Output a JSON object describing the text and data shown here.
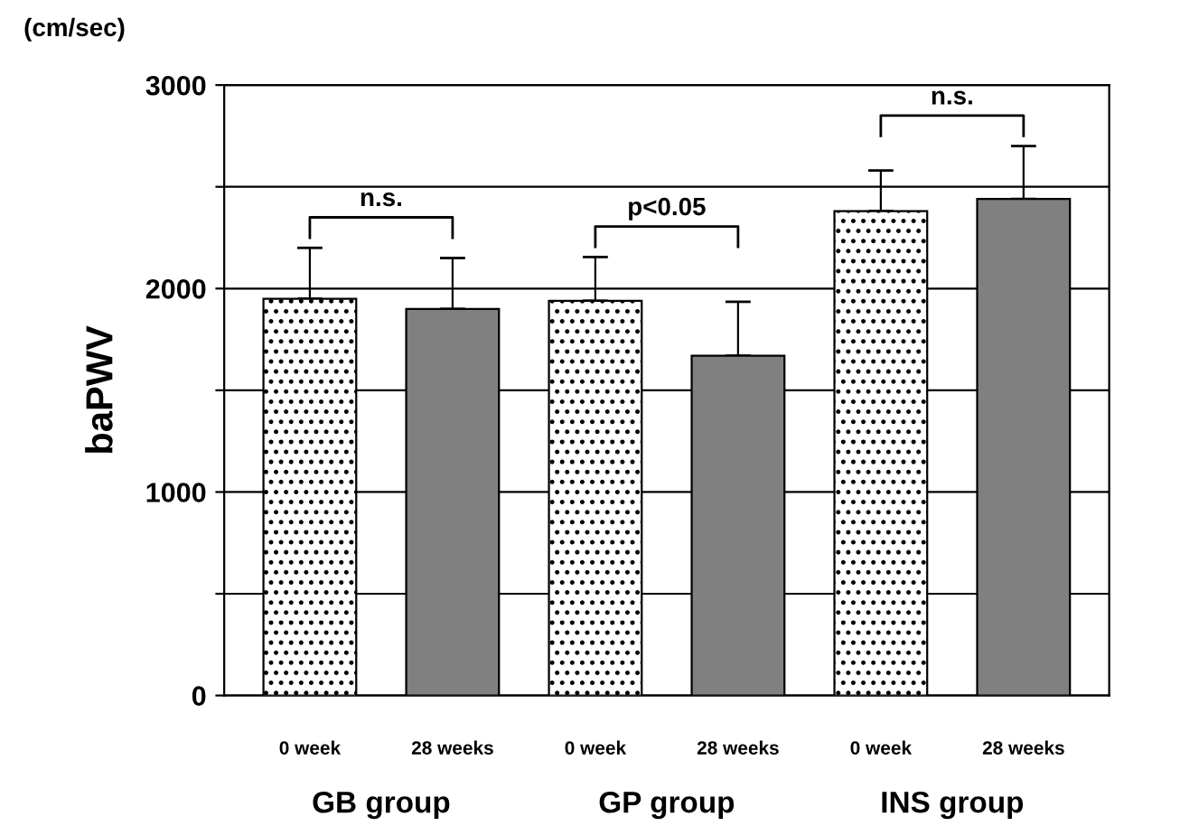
{
  "chart_data": {
    "type": "bar",
    "ylabel": "baPWV",
    "categories": [
      "0 week",
      "28 weeks",
      "0 week",
      "28 weeks",
      "0 week",
      "28 weeks"
    ],
    "values": [
      1950,
      1900,
      1940,
      1670,
      2380,
      2440
    ],
    "errors": [
      [
        1950,
        2200
      ],
      [
        1900,
        2150
      ],
      [
        1940,
        2155
      ],
      [
        1670,
        1935
      ],
      [
        2380,
        2580
      ],
      [
        2440,
        2700
      ]
    ],
    "colors": [
      "#ffffff",
      "#808080",
      "#ffffff",
      "#808080",
      "#ffffff",
      "#808080"
    ],
    "ylim": [
      0,
      3000
    ],
    "yticks": [
      0,
      {
        "value": 500,
        "label": null
      },
      1000,
      {
        "value": 1500,
        "label": null
      },
      2000,
      {
        "value": 2500,
        "label": null
      },
      3000
    ],
    "grid": "y",
    "legend": false,
    "annotations": [
      "(cm/sec)",
      "GB group",
      "GP group",
      "INS group",
      "n.s.",
      "p<0.05",
      "n.s."
    ]
  }
}
